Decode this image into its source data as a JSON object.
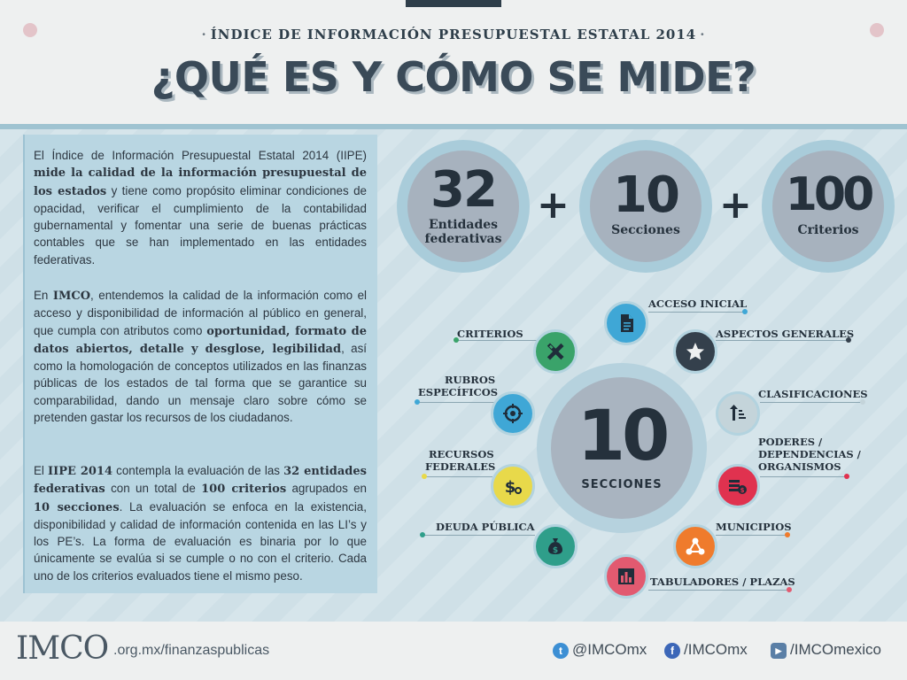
{
  "header": {
    "subtitle": "ÍNDICE DE INFORMACIÓN PRESUPUESTAL ESTATAL 2014",
    "subtitle_sep": "·",
    "title": "¿QUÉ ES Y CÓMO SE MIDE?"
  },
  "text_panel": {
    "p1": [
      "El Índice de Información Presupuestal Estatal 2014 (IIPE) ",
      "mide la calidad de la información presupuestal de los estados",
      " y tiene como propósito eliminar condiciones de opacidad, verificar el cumplimiento de la contabilidad gubernamental y fomentar una serie de buenas prácticas contables que se han implementado en las entidades federativas."
    ],
    "p2": [
      "En ",
      "IMCO",
      ", entendemos la calidad de la información como el acceso y disponibilidad de información al público en general, que cumpla con atributos como ",
      "oportunidad, formato de datos abiertos, detalle y desglose, legibilidad",
      ", así como la homologación de conceptos utilizados en las finanzas públicas de los estados de tal forma que se garantice su comparabilidad, dando un mensaje claro sobre cómo se pretenden gastar los recursos de los ciudadanos."
    ],
    "p3": [
      "El ",
      "IIPE 2014",
      " contempla la evaluación de las ",
      "32 entidades federativas",
      " con un total de ",
      "100 criterios",
      " agrupados en ",
      "10 secciones",
      ". La evaluación se enfoca en la existencia, disponibilidad y calidad de información contenida en las LI’s y los PE’s. La forma de evaluación es binaria por lo que únicamente se evalúa si se cumple o no con el criterio. Cada uno de los criterios evaluados tiene el mismo peso."
    ]
  },
  "stats": [
    {
      "number": "32",
      "label_1": "Entidades",
      "label_2": "federativas"
    },
    {
      "number": "10",
      "label_1": "Secciones",
      "label_2": ""
    },
    {
      "number": "100",
      "label_1": "Criterios",
      "label_2": ""
    }
  ],
  "plus_sign": "+",
  "center": {
    "number": "10",
    "label": "SECCIONES"
  },
  "sections": {
    "acceso_inicial": {
      "label": "ACCESO INICIAL",
      "color": "#3fa7d6",
      "icon": "document-icon"
    },
    "aspectos_generales": {
      "label": "ASPECTOS GENERALES",
      "color": "#34404c",
      "icon": "star-icon"
    },
    "clasificaciones": {
      "label": "CLASIFICACIONES",
      "color": "#c4d4da",
      "icon": "sort-icon"
    },
    "poderes": {
      "label_1": "PODERES /",
      "label_2": "DEPENDENCIAS /",
      "label_3": "ORGANISMOS",
      "color": "#e0324f",
      "icon": "coins-icon"
    },
    "municipios": {
      "label": "MUNICIPIOS",
      "color": "#ef7b2c",
      "icon": "network-icon"
    },
    "tabuladores": {
      "label": "TABULADORES / PLAZAS",
      "color": "#e25a70",
      "icon": "bar-chart-icon"
    },
    "deuda": {
      "label": "DEUDA PÚBLICA",
      "color": "#2f9e8a",
      "icon": "money-bag-icon"
    },
    "recursos": {
      "label_1": "RECURSOS",
      "label_2": "FEDERALES",
      "color": "#e8d94a",
      "icon": "dollar-coin-icon"
    },
    "rubros": {
      "label_1": "RUBROS",
      "label_2": "ESPECÍFICOS",
      "color": "#3fa7d6",
      "icon": "target-icon"
    },
    "criterios": {
      "label": "CRITERIOS",
      "color": "#3aa36a",
      "icon": "ruler-pencil-icon"
    }
  },
  "footer": {
    "logo": "IMCO",
    "url": ".org.mx/finanzaspublicas",
    "twitter": "@IMCOmx",
    "facebook": "/IMCOmx",
    "youtube": "/IMCOmexico"
  }
}
